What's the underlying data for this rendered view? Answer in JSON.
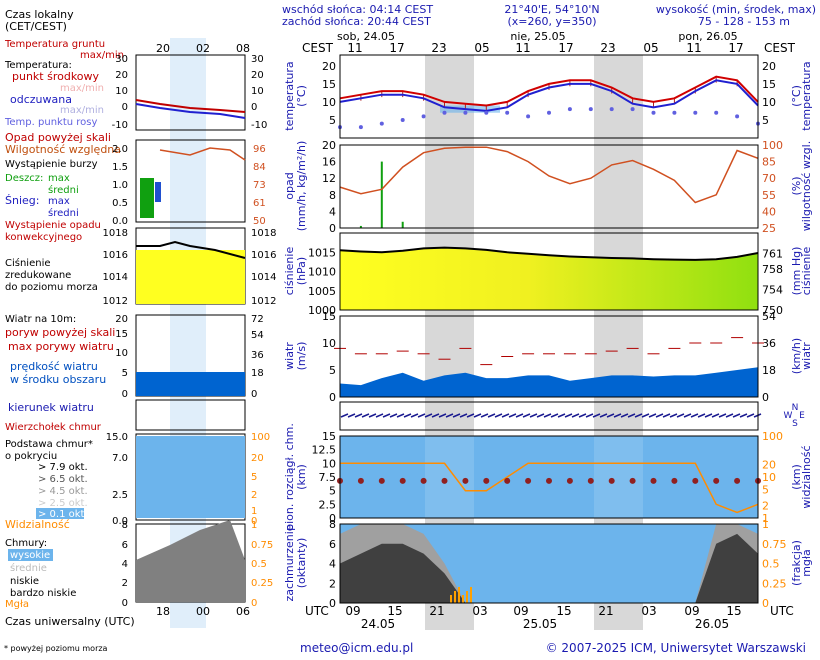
{
  "header": {
    "sunrise": "wschód słońca: 04:14 CEST",
    "sunset": "zachód słońca: 20:44 CEST",
    "coords": "21°40'E, 54°10'N",
    "grid": "(x=260, y=350)",
    "elev_title": "wysokość (min, środek, max)",
    "elev_values": "75 - 128 - 153 m"
  },
  "legend": {
    "local_time": "Czas lokalny",
    "cet": "(CET/CEST)",
    "soil": "Temperatura gruntu",
    "soil_mm": "max/min",
    "temp": "Temperatura:",
    "mid": "punkt środkowy",
    "maxmin": "max/min",
    "felt": "odczuwana",
    "felt_mm": "max/min",
    "dew": "Temp. punktu rosy",
    "precip_over": "Opad powyżej skali",
    "rh": "Wilgotność względna",
    "storm": "Wystąpienie burzy",
    "rain": "Deszcz:",
    "max": "max",
    "avg": "średni",
    "snow": "Śnieg:",
    "conv1": "Wystąpienie opadu",
    "conv2": "konwekcyjnego",
    "pres1": "Ciśnienie",
    "pres2": "zredukowane",
    "pres3": "do poziomu morza",
    "wind_title": "Wiatr na 10m:",
    "gust_over": "poryw powyżej skali",
    "gust": "max porywy wiatru",
    "wind_spd1": "prędkość wiatru",
    "wind_spd2": "w środku obszaru",
    "wind_dir": "kierunek wiatru",
    "cb": "Wierzchołek chmur",
    "base1": "Podstawa chmur*",
    "base2": "o pokryciu",
    "okt79": "> 7.9 okt.",
    "okt65": "> 6.5 okt.",
    "okt45": "> 4.5 okt.",
    "okt25": "> 2.5 okt.",
    "okt01": "> 0.1 okt.",
    "vis": "Widzialność",
    "clouds": "Chmury:",
    "high": "wysokie",
    "mid_c": "średnie",
    "low": "niskie",
    "vlow": "bardzo niskie",
    "fog": "Mgła",
    "utc_label": "Czas uniwersalny (UTC)",
    "footnote": "* powyżej poziomu morza",
    "top_ticks": [
      "20",
      "02",
      "08"
    ],
    "bottom_ticks": [
      "18",
      "00",
      "06"
    ]
  },
  "axes": {
    "temp_title": "temperatura",
    "temp_unit": "(°C)",
    "precip_title": "opad",
    "precip_unit": "(mm/h, kg/m²/h)",
    "rh_title": "wilgotność wzgl.",
    "rh_unit": "(%)",
    "pres_title": "ciśnienie",
    "pres_unit": "(hPa)",
    "pres_unit2": "(mm Hg)",
    "wind_title": "wiatr",
    "wind_unit": "(m/s)",
    "wind_unit2": "(km/h)",
    "cloud_title": "pion. rozciągł. chm.",
    "cloud_unit": "(km)",
    "vis_title": "widzialność",
    "vis_unit": "(km)",
    "cover_title": "zachmurzenie",
    "cover_unit": "(oktanty)",
    "fog_title": "mgła",
    "fog_unit": "(frakcja)",
    "cest": "CEST",
    "utc": "UTC",
    "compass": [
      "N",
      "W",
      "E",
      "S"
    ]
  },
  "footer": {
    "email": "meteo@icm.edu.pl",
    "copyright": "© 2007-2025 ICM, Uniwersytet Warszawski"
  },
  "colors": {
    "sky": "#6cb4ec",
    "night": "#d8d8d8",
    "temp": "#d00000",
    "felt": "#2020d0",
    "dew": "#6060e0",
    "rh": "#d05020",
    "pres_left": "#ffff20",
    "pres_right": "#90e010",
    "wind": "#0064d0",
    "gust": "#b00000",
    "vis": "#ff8c00"
  },
  "chart_data": [
    {
      "type": "line",
      "name": "temperatura",
      "x": [
        "24.05 06",
        "24.05 09",
        "24.05 12",
        "24.05 15",
        "24.05 18",
        "24.05 21",
        "25.05 00",
        "25.05 03",
        "25.05 06",
        "25.05 09",
        "25.05 12",
        "25.05 15",
        "25.05 18",
        "25.05 21",
        "26.05 00",
        "26.05 03",
        "26.05 06",
        "26.05 09",
        "26.05 12",
        "26.05 15",
        "26.05 18"
      ],
      "ylim": [
        0,
        23
      ],
      "yticks": [
        5,
        10,
        15,
        20
      ],
      "series": [
        {
          "values": [
            11,
            12,
            13,
            13,
            12,
            10,
            9.5,
            9,
            10,
            13,
            15,
            16,
            16,
            14,
            11,
            10,
            11,
            14,
            17,
            16,
            10
          ]
        },
        {
          "values": [
            10,
            11,
            12,
            12,
            11,
            8.5,
            8,
            7.5,
            8.5,
            12,
            14,
            15,
            15,
            13,
            9.5,
            8.5,
            9.5,
            13,
            16,
            15,
            9
          ]
        },
        {
          "values": [
            3,
            3,
            4,
            5,
            6,
            7,
            7,
            7,
            7,
            6,
            7,
            8,
            8,
            8,
            8,
            7,
            7,
            7,
            7,
            6,
            4
          ]
        }
      ]
    },
    {
      "type": "bar",
      "name": "opad",
      "ylim": [
        0,
        20
      ],
      "yticks": [
        0,
        4,
        8,
        12,
        16,
        20
      ],
      "rh_yticks": [
        25,
        40,
        55,
        70,
        85,
        100
      ],
      "rh_values": [
        62,
        56,
        60,
        80,
        93,
        97,
        98,
        98,
        94,
        85,
        72,
        65,
        70,
        82,
        86,
        78,
        68,
        48,
        55,
        95,
        88
      ],
      "rain_max": [
        0,
        0.5,
        16,
        1.5,
        0,
        0,
        0,
        0,
        0,
        0,
        0,
        0,
        0,
        0,
        0,
        0,
        0,
        0,
        0,
        0,
        0
      ]
    },
    {
      "type": "area",
      "name": "ciśnienie",
      "ylim": [
        1000,
        1020
      ],
      "yticks": [
        1000,
        1005,
        1010,
        1015
      ],
      "mmhg_yticks": [
        750,
        754,
        758,
        761
      ],
      "values": [
        1015.5,
        1015.2,
        1015.0,
        1015.4,
        1016.0,
        1016.2,
        1016.0,
        1015.6,
        1015.0,
        1014.6,
        1014.2,
        1013.9,
        1013.7,
        1013.5,
        1013.4,
        1013.2,
        1013.1,
        1013.0,
        1013.2,
        1013.8,
        1014.8
      ]
    },
    {
      "type": "area",
      "name": "wiatr",
      "ylim": [
        0,
        15
      ],
      "yticks": [
        0,
        5,
        10,
        15
      ],
      "kmh_yticks": [
        0,
        18,
        36,
        54
      ],
      "wind": [
        2.5,
        2.2,
        3.5,
        4.5,
        3.0,
        4.0,
        4.5,
        3.5,
        3.5,
        4.0,
        4.0,
        3.0,
        3.5,
        4.0,
        4.0,
        3.8,
        4.0,
        4.0,
        4.5,
        5.0,
        5.5
      ],
      "gust": [
        9,
        8,
        8,
        8.5,
        8,
        7,
        9,
        6,
        7.5,
        8,
        8,
        8,
        8,
        8.5,
        9,
        8,
        9,
        10,
        10,
        11,
        10
      ]
    },
    {
      "type": "scatter",
      "name": "chmury i widzialność",
      "ylim": [
        0,
        15
      ],
      "yticks": [
        0,
        2.5,
        5,
        7.5,
        10,
        12.5,
        15
      ],
      "vis_ticks": [
        0,
        1,
        2,
        5,
        10,
        20,
        100
      ],
      "vis_values": [
        20,
        20,
        20,
        20,
        20,
        20,
        10,
        10,
        15,
        20,
        20,
        20,
        20,
        20,
        20,
        20,
        20,
        20,
        5,
        2,
        5
      ]
    },
    {
      "type": "area",
      "name": "zachmurzenie",
      "ylim": [
        0,
        8
      ],
      "yticks": [
        0,
        2,
        4,
        6,
        8
      ],
      "fog_yticks": [
        0,
        0.25,
        0.5,
        0.75,
        1
      ],
      "low": [
        4,
        5,
        6,
        6,
        5,
        3,
        0,
        0,
        0,
        0,
        0,
        0,
        0,
        0,
        0,
        0,
        0,
        0,
        6,
        7,
        5
      ],
      "total": [
        7,
        8,
        8,
        8,
        7,
        4,
        0,
        0,
        0,
        0,
        0,
        0,
        0,
        0,
        0,
        0,
        0,
        0,
        8,
        8,
        7
      ]
    }
  ]
}
